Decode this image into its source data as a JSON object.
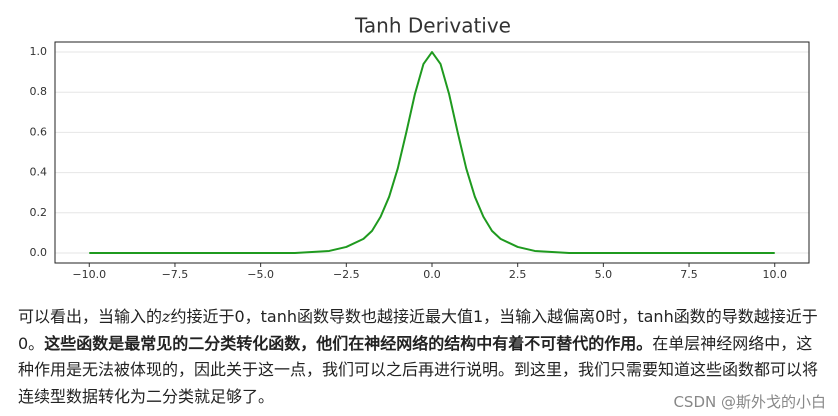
{
  "chart_data": {
    "type": "line",
    "title": "Tanh Derivative",
    "x": [
      -10,
      -6,
      -4,
      -3,
      -2.5,
      -2,
      -1.75,
      -1.5,
      -1.25,
      -1,
      -0.75,
      -0.5,
      -0.25,
      0,
      0.25,
      0.5,
      0.75,
      1,
      1.25,
      1.5,
      1.75,
      2,
      2.5,
      3,
      4,
      6,
      10
    ],
    "values": [
      0,
      0,
      0,
      0.01,
      0.03,
      0.07,
      0.11,
      0.18,
      0.28,
      0.42,
      0.6,
      0.79,
      0.94,
      1,
      0.94,
      0.79,
      0.6,
      0.42,
      0.28,
      0.18,
      0.11,
      0.07,
      0.03,
      0.01,
      0,
      0,
      0
    ],
    "color": "#1f9a1f",
    "xlim": [
      -11,
      11
    ],
    "xticks": [
      {
        "value": -10,
        "label": "−10.0"
      },
      {
        "value": -7.5,
        "label": "−7.5"
      },
      {
        "value": -5,
        "label": "−5.0"
      },
      {
        "value": -2.5,
        "label": "−2.5"
      },
      {
        "value": 0,
        "label": "0.0"
      },
      {
        "value": 2.5,
        "label": "2.5"
      },
      {
        "value": 5,
        "label": "5.0"
      },
      {
        "value": 7.5,
        "label": "7.5"
      },
      {
        "value": 10,
        "label": "10.0"
      }
    ],
    "ylim": [
      -0.05,
      1.05
    ],
    "yticks": [
      {
        "value": 0,
        "label": "0.0"
      },
      0.2,
      0.4,
      0.6,
      0.8,
      {
        "value": 1,
        "label": "1.0"
      }
    ],
    "grid": true
  },
  "article": {
    "segments": [
      {
        "text": "可以看出，当输入的",
        "style": "normal"
      },
      {
        "text": "z",
        "style": "italic"
      },
      {
        "text": "约接近于0，tanh函数导数也越接近最大值1，当输入越偏离0时，tanh函数的导数越接近于0。",
        "style": "normal"
      },
      {
        "text": "这些函数是最常见的二分类转化函数，他们在神经网络的结构中有着不可替代的作用。",
        "style": "bold"
      },
      {
        "text": "在单层神经网络中，这种作用是无法被体现的，因此关于这一点，我们可以之后再进行说明。到这里，我们只需要知道这些函数都可以将连续型数据转化为二分类就足够了。",
        "style": "normal"
      }
    ],
    "watermark": "CSDN @斯外戈的小白"
  }
}
